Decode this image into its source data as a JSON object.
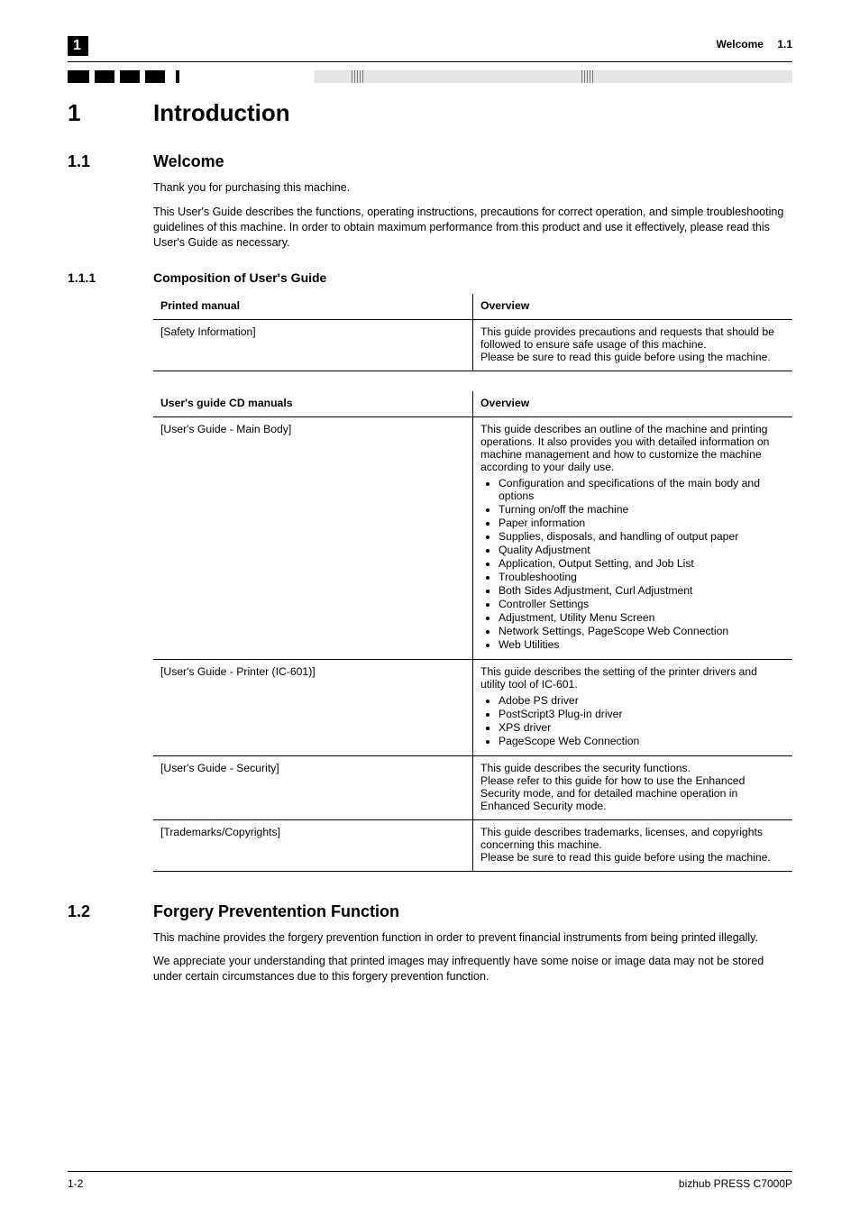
{
  "header": {
    "chapter_num_box": "1",
    "section_title": "Welcome",
    "section_num": "1.1"
  },
  "h1": {
    "num": "1",
    "title": "Introduction"
  },
  "s11": {
    "num": "1.1",
    "title": "Welcome",
    "p1": "Thank you for purchasing this machine.",
    "p2": "This User's Guide describes the functions, operating instructions, precautions for correct operation, and simple troubleshooting guidelines of this machine. In order to obtain maximum performance from this product and use it effectively, please read this User's Guide as necessary."
  },
  "s111": {
    "num": "1.1.1",
    "title": "Composition of User's Guide",
    "table1": {
      "head": [
        "Printed manual",
        "Overview"
      ],
      "rows": [
        {
          "c0": "[Safety Information]",
          "c1": "This guide provides precautions and requests that should be followed to ensure safe usage of this machine.\nPlease be sure to read this guide before using the machine."
        }
      ]
    },
    "table2": {
      "head": [
        "User's guide CD manuals",
        "Overview"
      ],
      "rows": [
        {
          "c0": "[User's Guide - Main Body]",
          "c1_intro": "This guide describes an outline of the machine and printing operations. It also provides you with detailed information on machine management and how to customize the machine according to your daily use.",
          "c1_list": [
            "Configuration and specifications of the main body and options",
            "Turning on/off the machine",
            "Paper information",
            "Supplies, disposals, and handling of output paper",
            "Quality Adjustment",
            "Application, Output Setting, and Job List",
            "Troubleshooting",
            "Both Sides Adjustment, Curl Adjustment",
            "Controller Settings",
            "Adjustment, Utility Menu Screen",
            "Network Settings, PageScope Web Connection",
            "Web Utilities"
          ]
        },
        {
          "c0": "[User's Guide - Printer (IC-601)]",
          "c1_intro": "This guide describes the setting of the printer drivers and utility tool of IC-601.",
          "c1_list": [
            "Adobe PS driver",
            "PostScript3 Plug-in driver",
            "XPS driver",
            "PageScope Web Connection"
          ]
        },
        {
          "c0": "[User's Guide - Security]",
          "c1_intro": "This guide describes the security functions.\nPlease refer to this guide for how to use the Enhanced Security mode, and for detailed machine operation in Enhanced Security mode.",
          "c1_list": []
        },
        {
          "c0": "[Trademarks/Copyrights]",
          "c1_intro": "This guide describes trademarks, licenses, and copyrights concerning this machine.\nPlease be sure to read this guide before using the machine.",
          "c1_list": []
        }
      ]
    }
  },
  "s12": {
    "num": "1.2",
    "title": "Forgery Preventention Function",
    "p1": "This machine provides the forgery prevention function in order to prevent financial instruments from being printed illegally.",
    "p2": "We appreciate your understanding that printed images may infrequently have some noise or image data may not be stored under certain circumstances due to this forgery prevention function."
  },
  "footer": {
    "left": "1-2",
    "right": "bizhub PRESS C7000P"
  },
  "colors": {
    "text": "#000000",
    "decor_gray": "#e5e5e5",
    "hatch": "#777777",
    "background": "#ffffff"
  },
  "fonts": {
    "family": "Arial, Helvetica, sans-serif",
    "h1_pt": 26,
    "h2_pt": 18,
    "h3_pt": 14,
    "body_pt": 12.5,
    "table_pt": 12.2,
    "footer_pt": 12
  }
}
